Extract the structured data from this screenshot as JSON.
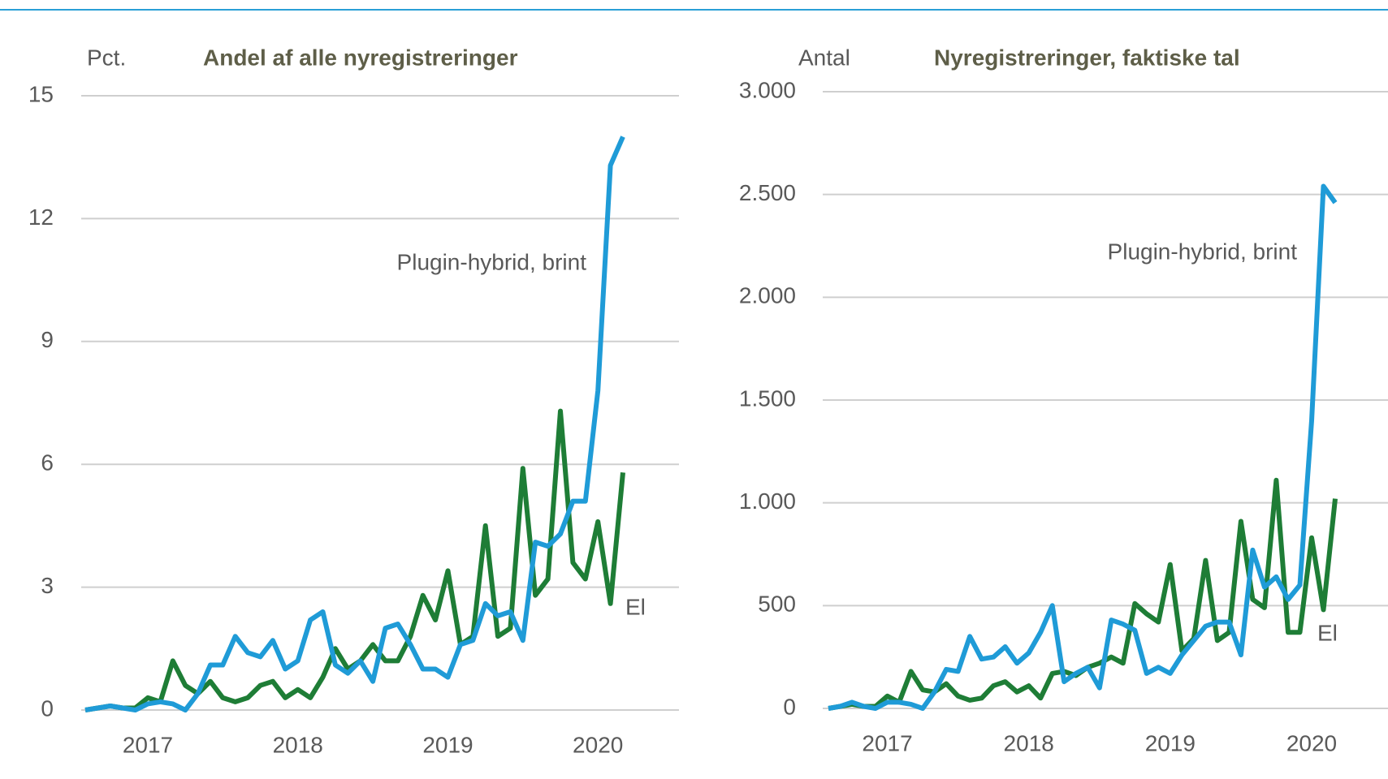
{
  "chart_data": [
    {
      "type": "line",
      "title": "Andel af alle nyregistreringer",
      "y_label": "Pct.",
      "categories": [
        null,
        null,
        null,
        null,
        null,
        "2017",
        null,
        null,
        null,
        null,
        null,
        null,
        null,
        null,
        null,
        null,
        null,
        "2018",
        null,
        null,
        null,
        null,
        null,
        null,
        null,
        null,
        null,
        null,
        null,
        "2019",
        null,
        null,
        null,
        null,
        null,
        null,
        null,
        null,
        null,
        null,
        null,
        "2020",
        null,
        null
      ],
      "series": [
        {
          "name": "Plugin-hybrid, brint",
          "color": "#1f9bd7",
          "values": [
            0,
            0.05,
            0.1,
            0.05,
            0,
            0.15,
            0.2,
            0.15,
            0,
            0.4,
            1.1,
            1.1,
            1.8,
            1.4,
            1.3,
            1.7,
            1.0,
            1.2,
            2.2,
            2.4,
            1.1,
            0.9,
            1.2,
            0.7,
            2.0,
            2.1,
            1.6,
            1.0,
            1.0,
            0.8,
            1.6,
            1.7,
            2.6,
            2.3,
            2.4,
            1.7,
            4.1,
            4.0,
            4.3,
            5.1,
            5.1,
            7.8,
            13.3,
            14.0
          ]
        },
        {
          "name": "El",
          "color": "#1e7d36",
          "values": [
            0,
            0.05,
            0.1,
            0.05,
            0.05,
            0.3,
            0.2,
            1.2,
            0.6,
            0.4,
            0.7,
            0.3,
            0.2,
            0.3,
            0.6,
            0.7,
            0.3,
            0.5,
            0.3,
            0.8,
            1.5,
            1.0,
            1.2,
            1.6,
            1.2,
            1.2,
            1.8,
            2.8,
            2.2,
            3.4,
            1.6,
            1.8,
            4.5,
            1.8,
            2.0,
            5.9,
            2.8,
            3.2,
            7.3,
            3.6,
            3.2,
            4.6,
            2.6,
            5.8
          ]
        }
      ],
      "ylim": [
        0,
        15
      ],
      "yticks": [
        0,
        3,
        6,
        9,
        12,
        15
      ],
      "grid": true
    },
    {
      "type": "line",
      "title": "Nyregistreringer, faktiske tal",
      "y_label": "Antal",
      "categories": [
        null,
        null,
        null,
        null,
        null,
        "2017",
        null,
        null,
        null,
        null,
        null,
        null,
        null,
        null,
        null,
        null,
        null,
        "2018",
        null,
        null,
        null,
        null,
        null,
        null,
        null,
        null,
        null,
        null,
        null,
        "2019",
        null,
        null,
        null,
        null,
        null,
        null,
        null,
        null,
        null,
        null,
        null,
        "2020",
        null,
        null
      ],
      "series": [
        {
          "name": "Plugin-hybrid, brint",
          "color": "#1f9bd7",
          "values": [
            0,
            10,
            30,
            10,
            0,
            30,
            30,
            20,
            0,
            80,
            190,
            180,
            350,
            240,
            250,
            300,
            220,
            270,
            370,
            500,
            130,
            170,
            200,
            100,
            430,
            410,
            380,
            170,
            200,
            170,
            260,
            330,
            400,
            420,
            420,
            260,
            770,
            590,
            640,
            530,
            600,
            1400,
            2540,
            2460
          ]
        },
        {
          "name": "El",
          "color": "#1e7d36",
          "values": [
            0,
            10,
            20,
            10,
            10,
            60,
            30,
            180,
            90,
            80,
            120,
            60,
            40,
            50,
            110,
            130,
            80,
            110,
            50,
            170,
            180,
            160,
            200,
            220,
            250,
            220,
            510,
            460,
            420,
            700,
            280,
            340,
            720,
            330,
            370,
            910,
            530,
            490,
            1110,
            370,
            370,
            830,
            480,
            1020
          ]
        }
      ],
      "ylim": [
        0,
        3000
      ],
      "yticks": [
        0,
        {
          "value": 500,
          "label": "500"
        },
        {
          "value": 1000,
          "label": "1.000"
        },
        {
          "value": 1500,
          "label": "1.500"
        },
        {
          "value": 2000,
          "label": "2.000"
        },
        {
          "value": 2500,
          "label": "2.500"
        },
        {
          "value": 3000,
          "label": "3.000"
        }
      ],
      "grid": true
    }
  ]
}
